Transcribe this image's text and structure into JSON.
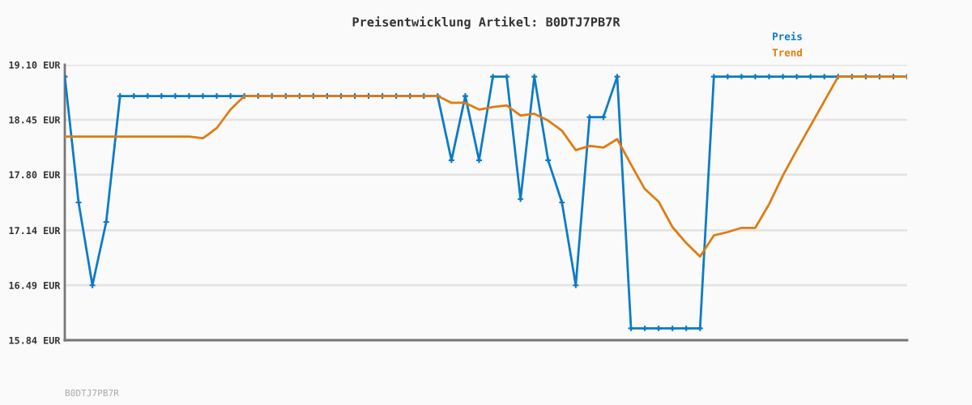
{
  "chart_data": {
    "type": "line",
    "title": "Preisentwicklung Artikel: B0DTJ7PB7R",
    "categories": [
      null,
      null,
      null,
      null,
      null,
      null,
      null,
      null,
      null,
      null,
      null,
      null,
      null,
      null,
      null,
      null,
      null,
      null,
      null,
      null,
      null,
      null,
      null,
      null,
      null,
      null,
      null,
      null,
      null,
      null,
      null,
      null,
      null,
      null,
      null,
      null,
      null,
      null,
      null,
      null,
      null,
      null,
      null,
      null,
      null,
      null,
      null,
      null,
      null,
      null,
      null,
      null,
      null,
      null,
      null,
      null,
      null,
      null,
      null,
      null,
      null,
      null
    ],
    "series": [
      {
        "name": "Preis",
        "color": "#0a7bc8",
        "marker": "cross",
        "values": [
          18.96,
          17.47,
          16.49,
          17.24,
          18.73,
          18.73,
          18.73,
          18.73,
          18.73,
          18.73,
          18.73,
          18.73,
          18.73,
          18.73,
          18.73,
          18.73,
          18.73,
          18.73,
          18.73,
          18.73,
          18.73,
          18.73,
          18.73,
          18.73,
          18.73,
          18.73,
          18.73,
          18.73,
          17.97,
          18.73,
          17.97,
          18.96,
          18.96,
          17.51,
          18.96,
          17.97,
          17.47,
          16.49,
          18.48,
          18.48,
          18.96,
          15.98,
          15.98,
          15.98,
          15.98,
          15.98,
          15.98,
          18.96,
          18.96,
          18.96,
          18.96,
          18.96,
          18.96,
          18.96,
          18.96,
          18.96,
          18.96,
          18.96,
          18.96,
          18.96,
          18.96,
          18.96
        ]
      },
      {
        "name": "Trend",
        "color": "#e07b10",
        "marker": "none",
        "values": [
          18.25,
          18.25,
          18.25,
          18.25,
          18.25,
          18.25,
          18.25,
          18.25,
          18.25,
          18.25,
          18.23,
          18.35,
          18.57,
          18.73,
          18.73,
          18.73,
          18.73,
          18.73,
          18.73,
          18.73,
          18.73,
          18.73,
          18.73,
          18.73,
          18.73,
          18.73,
          18.73,
          18.73,
          18.65,
          18.65,
          18.57,
          18.6,
          18.62,
          18.5,
          18.52,
          18.44,
          18.32,
          18.09,
          18.14,
          18.12,
          18.22,
          17.92,
          17.63,
          17.48,
          17.18,
          16.99,
          16.83,
          17.08,
          17.12,
          17.17,
          17.17,
          17.45,
          17.79,
          18.09,
          18.38,
          18.67,
          18.96,
          18.96,
          18.96,
          18.96,
          18.96,
          18.96
        ]
      }
    ],
    "ylim": [
      15.84,
      19.1
    ],
    "yticks": [
      {
        "value": 15.84,
        "label": "15.84 EUR"
      },
      {
        "value": 16.49,
        "label": "16.49 EUR"
      },
      {
        "value": 17.14,
        "label": "17.14 EUR"
      },
      {
        "value": 17.8,
        "label": "17.80 EUR"
      },
      {
        "value": 18.45,
        "label": "18.45 EUR"
      },
      {
        "value": 19.1,
        "label": "19.10 EUR"
      }
    ],
    "grid": "y",
    "legend": "top right",
    "tick_labels": "y",
    "annotations": [
      "B0DTJ7PB7R"
    ]
  }
}
